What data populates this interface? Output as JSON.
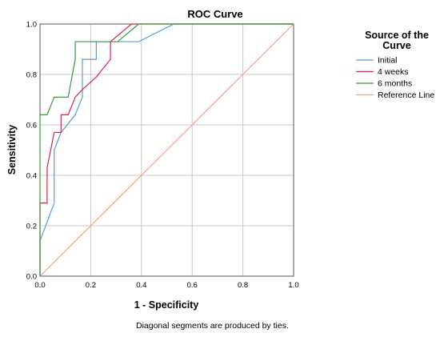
{
  "chart_data": {
    "type": "line",
    "title": "ROC Curve",
    "xlabel": "1 - Specificity",
    "ylabel": "Sensitivity",
    "xlim": [
      0,
      1
    ],
    "ylim": [
      0,
      1
    ],
    "xticks": [
      "0.0",
      "0.2",
      "0.4",
      "0.6",
      "0.8",
      "1.0"
    ],
    "yticks": [
      "0.0",
      "0.2",
      "0.4",
      "0.6",
      "0.8",
      "1.0"
    ],
    "grid": true,
    "legend": {
      "title_line1": "Source of the",
      "title_line2": "Curve",
      "position": "right"
    },
    "footnote": "Diagonal segments are produced by ties.",
    "series": [
      {
        "name": "Initial",
        "color": "#5b9bd5",
        "points": [
          [
            0,
            0
          ],
          [
            0,
            0.14
          ],
          [
            0.056,
            0.29
          ],
          [
            0.056,
            0.5
          ],
          [
            0.083,
            0.57
          ],
          [
            0.139,
            0.64
          ],
          [
            0.167,
            0.71
          ],
          [
            0.167,
            0.86
          ],
          [
            0.222,
            0.86
          ],
          [
            0.222,
            0.93
          ],
          [
            0.389,
            0.93
          ],
          [
            0.528,
            1.0
          ],
          [
            1,
            1
          ]
        ]
      },
      {
        "name": "4 weeks",
        "color": "#e0204a",
        "points": [
          [
            0,
            0
          ],
          [
            0,
            0.29
          ],
          [
            0.028,
            0.29
          ],
          [
            0.028,
            0.43
          ],
          [
            0.056,
            0.57
          ],
          [
            0.083,
            0.57
          ],
          [
            0.083,
            0.64
          ],
          [
            0.111,
            0.64
          ],
          [
            0.139,
            0.71
          ],
          [
            0.167,
            0.74
          ],
          [
            0.222,
            0.79
          ],
          [
            0.278,
            0.86
          ],
          [
            0.278,
            0.93
          ],
          [
            0.361,
            1.0
          ],
          [
            1,
            1
          ]
        ]
      },
      {
        "name": "6 months",
        "color": "#3a9a3a",
        "points": [
          [
            0,
            0
          ],
          [
            0,
            0.64
          ],
          [
            0.028,
            0.64
          ],
          [
            0.056,
            0.71
          ],
          [
            0.111,
            0.71
          ],
          [
            0.139,
            0.86
          ],
          [
            0.139,
            0.93
          ],
          [
            0.306,
            0.93
          ],
          [
            0.389,
            1.0
          ],
          [
            1,
            1
          ]
        ]
      },
      {
        "name": "Reference Line",
        "color": "#f4a582",
        "points": [
          [
            0,
            0
          ],
          [
            1,
            1
          ]
        ]
      }
    ]
  }
}
